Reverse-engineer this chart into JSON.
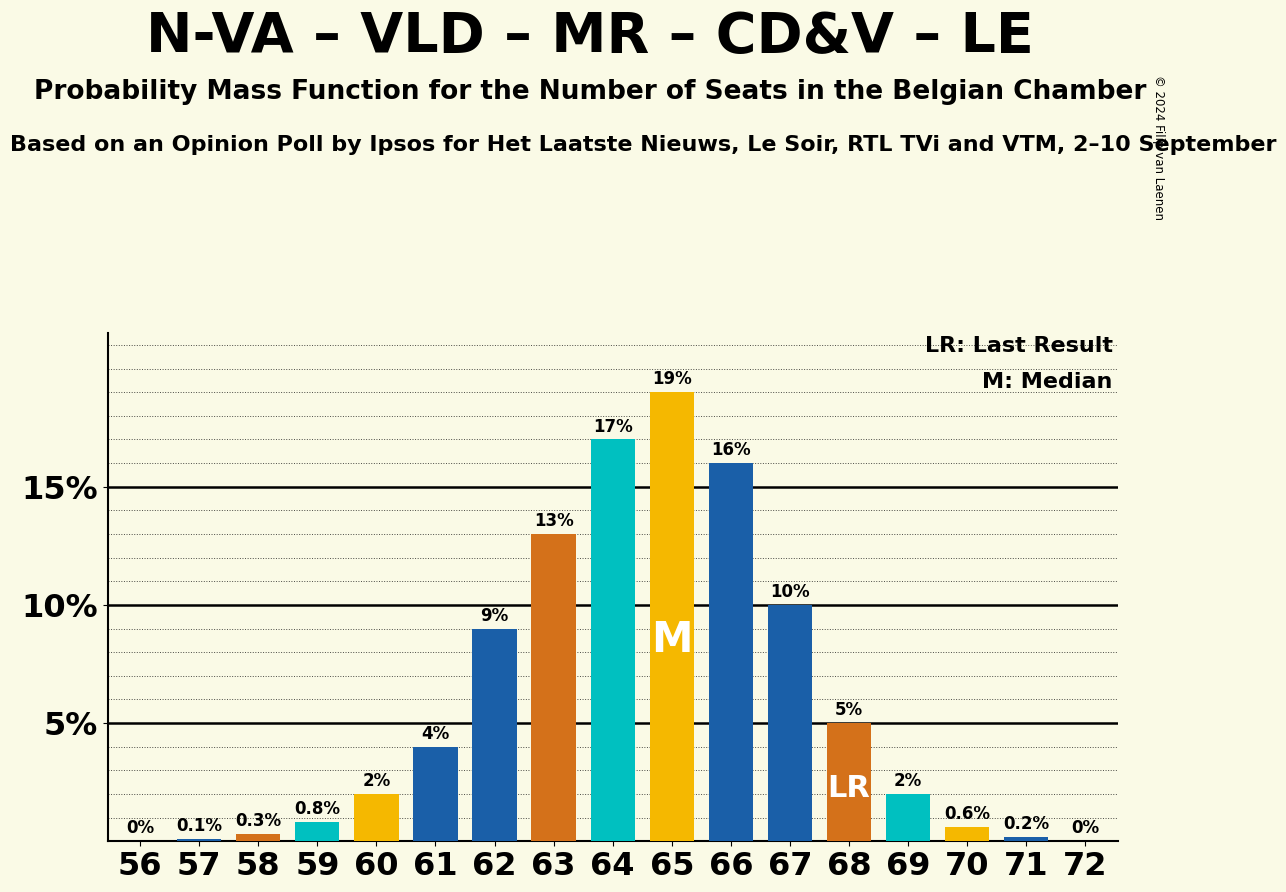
{
  "title": "N-VA – VLD – MR – CD&V – LE",
  "subtitle": "Probability Mass Function for the Number of Seats in the Belgian Chamber",
  "source_line": "Based on an Opinion Poll by Ipsos for Het Laatste Nieuws, Le Soir, RTL TVi and VTM, 2–10 September",
  "copyright": "© 2024 Filip van Laenen",
  "seats": [
    56,
    57,
    58,
    59,
    60,
    61,
    62,
    63,
    64,
    65,
    66,
    67,
    68,
    69,
    70,
    71,
    72
  ],
  "probabilities": [
    0.0,
    0.1,
    0.3,
    0.8,
    2.0,
    4.0,
    9.0,
    13.0,
    17.0,
    19.0,
    16.0,
    10.0,
    5.0,
    2.0,
    0.6,
    0.2,
    0.0
  ],
  "color_map": {
    "56": "#1A5FA8",
    "57": "#1A5FA8",
    "58": "#D4711A",
    "59": "#00C0C0",
    "60": "#F5B800",
    "61": "#1A5FA8",
    "62": "#1A5FA8",
    "63": "#D4711A",
    "64": "#00C0C0",
    "65": "#F5B800",
    "66": "#1A5FA8",
    "67": "#1A5FA8",
    "68": "#D4711A",
    "69": "#00C0C0",
    "70": "#F5B800",
    "71": "#1A5FA8",
    "72": "#1A5FA8"
  },
  "median_seat": 65,
  "last_result_seat": 68,
  "background_color": "#FAFAE6",
  "ytick_labels": [
    "5%",
    "10%",
    "15%"
  ],
  "ytick_values": [
    5,
    10,
    15
  ],
  "legend_lr": "LR: Last Result",
  "legend_m": "M: Median",
  "title_fontsize": 40,
  "subtitle_fontsize": 19,
  "source_fontsize": 16
}
